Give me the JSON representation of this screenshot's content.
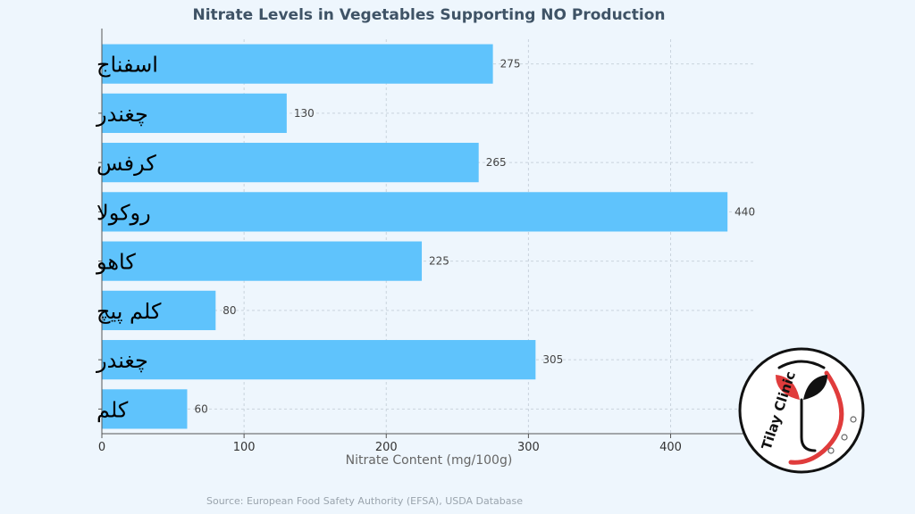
{
  "chart_data": {
    "type": "bar",
    "orientation": "horizontal",
    "title": "Nitrate Levels in Vegetables Supporting NO Production",
    "categories": [
      "اسفناج",
      "چغندر",
      "کرفس",
      "روکولا",
      "کاهو",
      "کلم پیچ",
      "چغندر",
      "کلم"
    ],
    "values": [
      275,
      130,
      265,
      440,
      225,
      80,
      305,
      60
    ],
    "value_labels": [
      "275",
      "130",
      "265",
      "440",
      "225",
      "80",
      "305",
      "60"
    ],
    "xlabel": "Nitrate Content (mg/100g)",
    "ylabel": "",
    "xlim": [
      0,
      460
    ],
    "xticks": [
      0,
      100,
      200,
      300,
      400
    ],
    "xtick_labels": [
      "0",
      "100",
      "200",
      "300",
      "400"
    ],
    "grid": true,
    "colors": {
      "bar": "#5fc3fc",
      "grid": "#c9d3dd",
      "axis": "#555555"
    }
  },
  "source": "Source: European Food Safety Authority (EFSA), USDA Database",
  "logo": {
    "text": "Tilay Clinic",
    "colors": {
      "ring": "#111111",
      "accent": "#e03c3c",
      "leaf": "#111111"
    }
  }
}
